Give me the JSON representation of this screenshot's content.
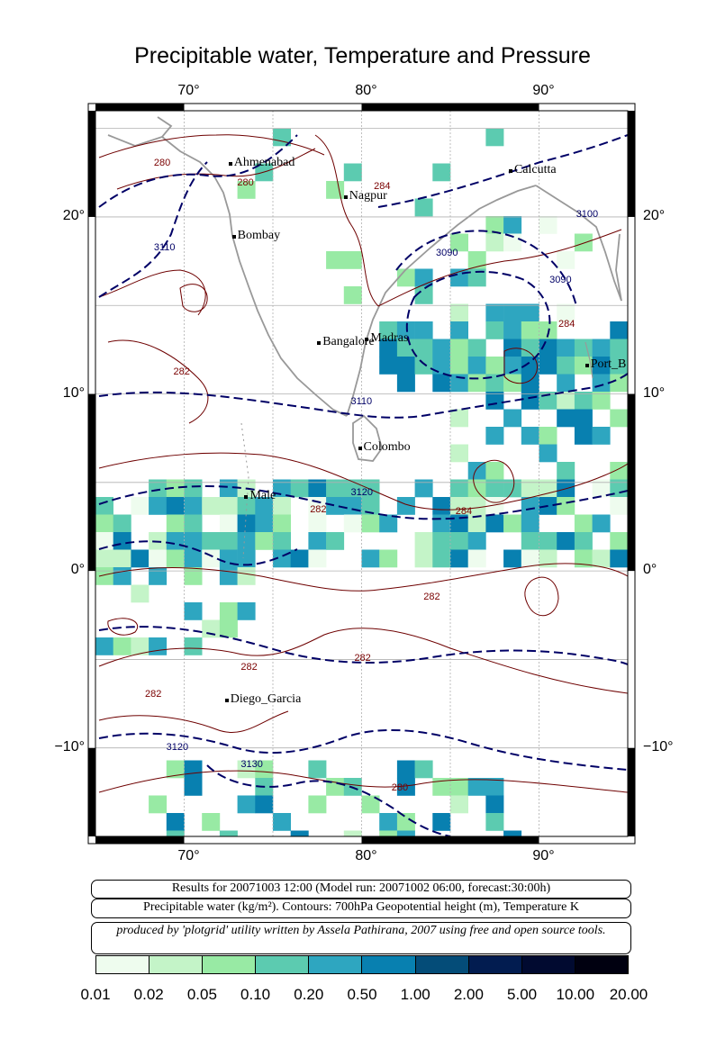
{
  "title": "Precipitable water, Temperature and Pressure",
  "axes": {
    "top_ticks": [
      "70°",
      "80°",
      "90°"
    ],
    "bottom_ticks": [
      "70°",
      "80°",
      "90°"
    ],
    "left_ticks": [
      "20°",
      "10°",
      "0°",
      "−10°"
    ],
    "right_ticks": [
      "20°",
      "10°",
      "0°",
      "−10°"
    ],
    "lon_range": [
      65,
      95
    ],
    "lat_range": [
      -15,
      26
    ]
  },
  "cities": [
    {
      "name": "Ahmenabad",
      "lon": 72.6,
      "lat": 23.0
    },
    {
      "name": "Nagpur",
      "lon": 79.1,
      "lat": 21.1
    },
    {
      "name": "Calcutta",
      "lon": 88.4,
      "lat": 22.6
    },
    {
      "name": "Bombay",
      "lon": 72.8,
      "lat": 18.9
    },
    {
      "name": "Bangalore",
      "lon": 77.6,
      "lat": 12.9
    },
    {
      "name": "Madras",
      "lon": 80.3,
      "lat": 13.1
    },
    {
      "name": "Port_B",
      "lon": 92.7,
      "lat": 11.6
    },
    {
      "name": "Colombo",
      "lon": 79.9,
      "lat": 6.9
    },
    {
      "name": "Male",
      "lon": 73.5,
      "lat": 4.2
    },
    {
      "name": "Diego_Garcia",
      "lon": 72.4,
      "lat": -7.3
    }
  ],
  "contour_labels": [
    {
      "text": "280",
      "lon": 68.9,
      "lat": 23.0,
      "color": "#7a0000"
    },
    {
      "text": "280",
      "lon": 73.6,
      "lat": 21.9,
      "color": "#7a0000"
    },
    {
      "text": "284",
      "lon": 81.3,
      "lat": 21.7,
      "color": "#7a0000"
    },
    {
      "text": "3110",
      "lon": 68.9,
      "lat": 18.2,
      "color": "#000066"
    },
    {
      "text": "3090",
      "lon": 84.8,
      "lat": 17.9,
      "color": "#000066"
    },
    {
      "text": "3090",
      "lon": 91.2,
      "lat": 16.4,
      "color": "#000066"
    },
    {
      "text": "3100",
      "lon": 92.7,
      "lat": 20.1,
      "color": "#000066"
    },
    {
      "text": "284",
      "lon": 91.7,
      "lat": 13.9,
      "color": "#7a0000"
    },
    {
      "text": "282",
      "lon": 70.0,
      "lat": 11.2,
      "color": "#7a0000"
    },
    {
      "text": "3110",
      "lon": 80.0,
      "lat": 9.5,
      "color": "#000066"
    },
    {
      "text": "3120",
      "lon": 80.0,
      "lat": 4.4,
      "color": "#000066"
    },
    {
      "text": "282",
      "lon": 77.7,
      "lat": 3.4,
      "color": "#7a0000"
    },
    {
      "text": "284",
      "lon": 85.9,
      "lat": 3.3,
      "color": "#7a0000"
    },
    {
      "text": "282",
      "lon": 84.1,
      "lat": -1.5,
      "color": "#7a0000"
    },
    {
      "text": "282",
      "lon": 80.2,
      "lat": -5.0,
      "color": "#7a0000"
    },
    {
      "text": "282",
      "lon": 73.8,
      "lat": -5.5,
      "color": "#7a0000"
    },
    {
      "text": "282",
      "lon": 68.4,
      "lat": -7.0,
      "color": "#7a0000"
    },
    {
      "text": "3120",
      "lon": 69.6,
      "lat": -10.0,
      "color": "#000066"
    },
    {
      "text": "3130",
      "lon": 73.8,
      "lat": -11.0,
      "color": "#000066"
    },
    {
      "text": "280",
      "lon": 82.3,
      "lat": -12.3,
      "color": "#7a0000"
    }
  ],
  "info": {
    "line1": "Results for 20071003 12:00 (Model run: 20071002 06:00, forecast:30:00h)",
    "line2": "Precipitable water (kg/m²).  Contours: 700hPa Geopotential height (m), Temperature K",
    "line3": "produced by 'plotgrid' utility written by Assela Pathirana, 2007 using free and open source tools."
  },
  "colorbar": {
    "labels": [
      "0.01",
      "0.02",
      "0.05",
      "0.10",
      "0.20",
      "0.50",
      "1.00",
      "2.00",
      "5.00",
      "10.00",
      "20.00"
    ],
    "colors": [
      "#eefcee",
      "#c4f4c8",
      "#98eaa4",
      "#5ccbb0",
      "#2ea6c0",
      "#0880b0",
      "#044c78",
      "#021c50",
      "#010a30",
      "#000010"
    ]
  },
  "colors": {
    "coast": "#999999",
    "temperature_contour": "#6e0000",
    "geopotential_contour": "#000066",
    "grid": "#b0b0b0"
  }
}
